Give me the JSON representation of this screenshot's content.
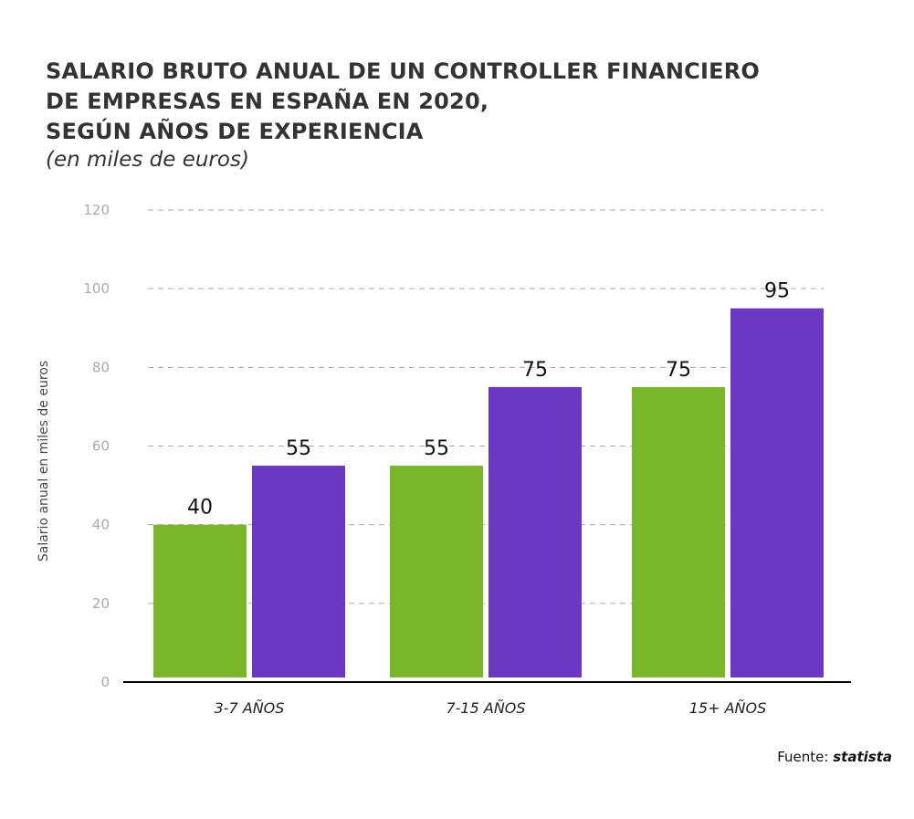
{
  "chart_data": {
    "type": "bar",
    "title_lines": [
      "SALARIO BRUTO ANUAL DE UN CONTROLLER FINANCIERO",
      "DE EMPRESAS EN ESPAÑA EN 2020,",
      "SEGÚN AÑOS DE EXPERIENCIA"
    ],
    "subtitle": "(en miles de euros)",
    "ylabel": "Salario anual en miles de euros",
    "xlabel": "",
    "categories": [
      "3-7 AÑOS",
      "7-15 AÑOS",
      "15+ AÑOS"
    ],
    "series": [
      {
        "values": [
          40,
          55,
          75
        ],
        "color": "#79b62a"
      },
      {
        "values": [
          55,
          75,
          95
        ],
        "color": "#6a38c2"
      }
    ],
    "ylim": [
      0,
      120
    ],
    "yticks": [
      "0",
      "20",
      "40",
      "60",
      "80",
      "100",
      "120"
    ],
    "grid": true,
    "grid_style": "dashed",
    "legend": "none"
  },
  "source": {
    "label": "Fuente:",
    "name": "statista"
  }
}
